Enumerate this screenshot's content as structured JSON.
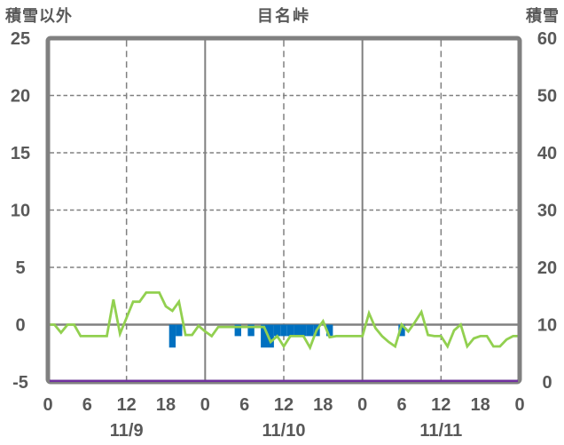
{
  "header": {
    "left_axis_title": "積雪以外",
    "chart_title": "目名峠",
    "right_axis_title": "積雪"
  },
  "colors": {
    "green_line": "#92D050",
    "blue_bars": "#0070C0",
    "purple_line": "#7030A0",
    "axis_gray": "#808080",
    "text_gray": "#595959",
    "background": "#ffffff"
  },
  "chart_data": {
    "type": "line",
    "subtype": "mixed-line-and-bar",
    "title": "目名峠",
    "left_axis": {
      "title": "積雪以外",
      "min": -5,
      "max": 25,
      "tick_step": 5,
      "ticks": [
        "25",
        "20",
        "15",
        "10",
        "5",
        "0",
        "-5"
      ]
    },
    "right_axis": {
      "title": "積雪",
      "min": 0,
      "max": 60,
      "tick_step": 10,
      "ticks": [
        "60",
        "50",
        "40",
        "30",
        "20",
        "10",
        "0"
      ]
    },
    "x_axis": {
      "unit": "hours",
      "total_hours": 72,
      "tick_interval": 6,
      "tick_labels": [
        "0",
        "6",
        "12",
        "18",
        "0",
        "6",
        "12",
        "18",
        "0",
        "6",
        "12",
        "18",
        "0"
      ],
      "date_labels": [
        "11/9",
        "11/10",
        "11/11"
      ],
      "date_center_hours": [
        12,
        36,
        60
      ],
      "noon_gridlines_hours": [
        12,
        36,
        60
      ],
      "midnight_gridlines_hours": [
        24,
        48
      ]
    },
    "grid": {
      "color": "#808080",
      "h_dashed_values": [
        20,
        15,
        10,
        5
      ],
      "zero_line_value": 0,
      "grid_on": true
    },
    "legend": {
      "visible": false
    },
    "series": [
      {
        "name": "green-line",
        "type": "line",
        "axis": "left",
        "color": "#92D050",
        "x_start_hour": 0,
        "x_step_hours": 1,
        "values": [
          0,
          0,
          -0.7,
          0,
          0,
          -1,
          -1,
          -1,
          -1,
          -1,
          2.2,
          -0.8,
          0.6,
          2,
          2,
          2.8,
          2.8,
          2.8,
          1.6,
          1.2,
          2,
          -0.9,
          -0.9,
          -0.1,
          -0.6,
          -1,
          -0.2,
          -0.2,
          -0.2,
          -0.2,
          -0.2,
          -0.2,
          -0.2,
          -0.2,
          -1.5,
          -1,
          -1.9,
          -1,
          -1,
          -1,
          -2,
          -0.5,
          0.3,
          -1.1,
          -1,
          -1,
          -1,
          -1,
          -1,
          1,
          -0.3,
          -1,
          -1.5,
          -1.9,
          0,
          -0.6,
          0.2,
          1.1,
          -0.9,
          -1,
          -1,
          -1.9,
          -0.5,
          0,
          -1.9,
          -1.2,
          -1,
          -1,
          -1.9,
          -1.9,
          -1.3,
          -1,
          -1
        ]
      },
      {
        "name": "blue-bars",
        "type": "bar",
        "axis": "left",
        "color": "#0070C0",
        "bars": [
          {
            "hour": 19,
            "value": -2
          },
          {
            "hour": 20,
            "value": -1
          },
          {
            "hour": 29,
            "value": -1
          },
          {
            "hour": 31,
            "value": -1
          },
          {
            "hour": 33,
            "value": -2
          },
          {
            "hour": 34,
            "value": -2
          },
          {
            "hour": 35,
            "value": -1
          },
          {
            "hour": 36,
            "value": -1
          },
          {
            "hour": 37,
            "value": -1
          },
          {
            "hour": 38,
            "value": -1
          },
          {
            "hour": 39,
            "value": -1
          },
          {
            "hour": 40,
            "value": -1
          },
          {
            "hour": 41,
            "value": -1
          },
          {
            "hour": 43,
            "value": -1
          },
          {
            "hour": 54,
            "value": -1
          }
        ]
      },
      {
        "name": "purple-line",
        "type": "line",
        "axis": "right",
        "color": "#7030A0",
        "constant_value": 0
      }
    ]
  }
}
